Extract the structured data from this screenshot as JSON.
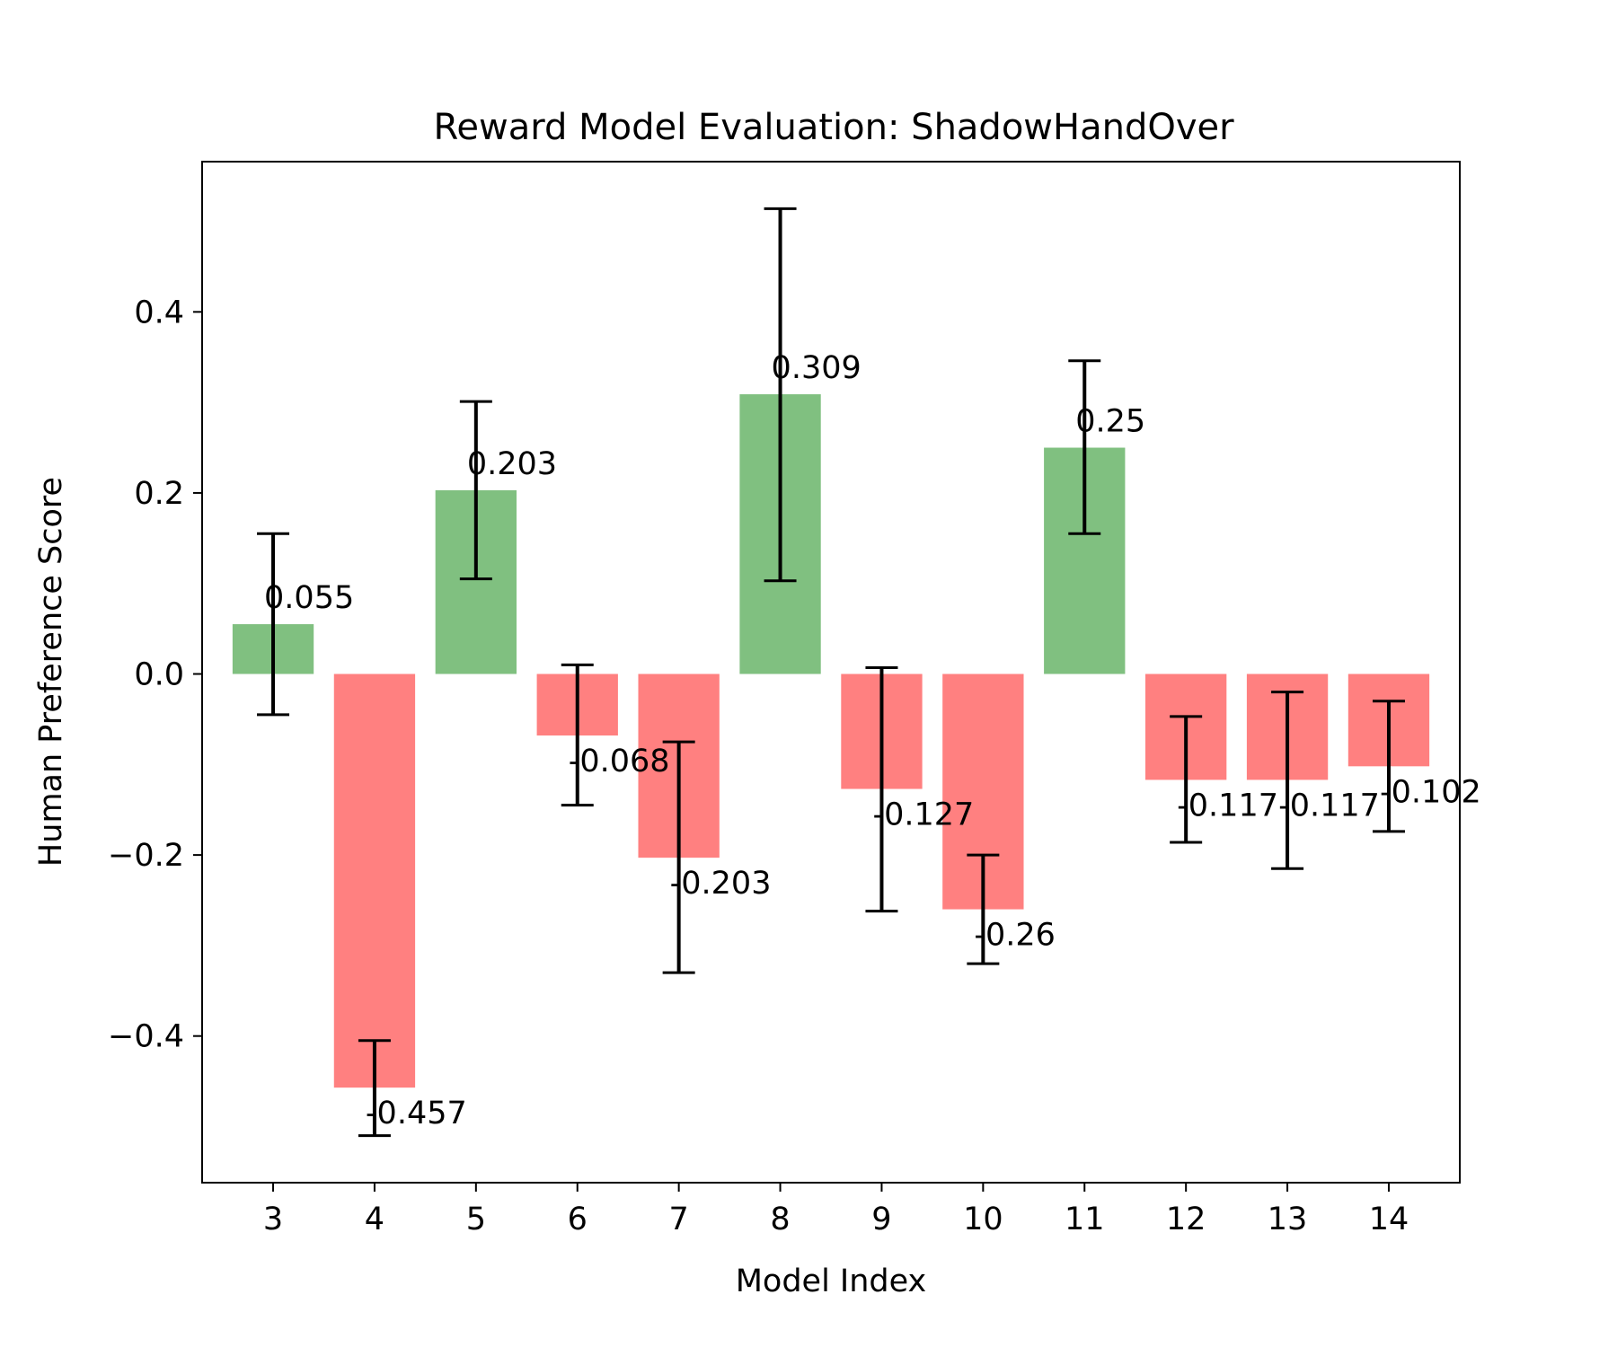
{
  "chart_data": {
    "type": "bar",
    "title": "Reward Model Evaluation: ShadowHandOver",
    "xlabel": "Model Index",
    "ylabel": "Human Preference Score",
    "categories": [
      "3",
      "4",
      "5",
      "6",
      "7",
      "8",
      "9",
      "10",
      "11",
      "12",
      "13",
      "14"
    ],
    "values": [
      0.055,
      -0.457,
      0.203,
      -0.068,
      -0.203,
      0.309,
      -0.127,
      -0.26,
      0.25,
      -0.117,
      -0.117,
      -0.102
    ],
    "value_labels": [
      "0.055",
      "-0.457",
      "0.203",
      "-0.068",
      "-0.203",
      "0.309",
      "-0.127",
      "-0.26",
      "0.25",
      "-0.117",
      "-0.117",
      "-0.102"
    ],
    "error_bars": [
      [
        -0.045,
        0.155
      ],
      [
        -0.51,
        -0.405
      ],
      [
        0.105,
        0.301
      ],
      [
        -0.145,
        0.01
      ],
      [
        -0.33,
        -0.075
      ],
      [
        0.103,
        0.514
      ],
      [
        -0.262,
        0.007
      ],
      [
        -0.32,
        -0.2
      ],
      [
        0.155,
        0.346
      ],
      [
        -0.186,
        -0.047
      ],
      [
        -0.215,
        -0.02
      ],
      [
        -0.174,
        -0.03
      ]
    ],
    "ylim": [
      -0.562,
      0.566
    ],
    "yticks": [
      -0.4,
      -0.2,
      0.0,
      0.2,
      0.4
    ],
    "ytick_labels": [
      "−0.4",
      "−0.2",
      "0.0",
      "0.2",
      "0.4"
    ],
    "positive_color": "#80c080",
    "negative_color": "#ff8080",
    "error_color": "#000000",
    "grid": false,
    "legend": "none"
  }
}
